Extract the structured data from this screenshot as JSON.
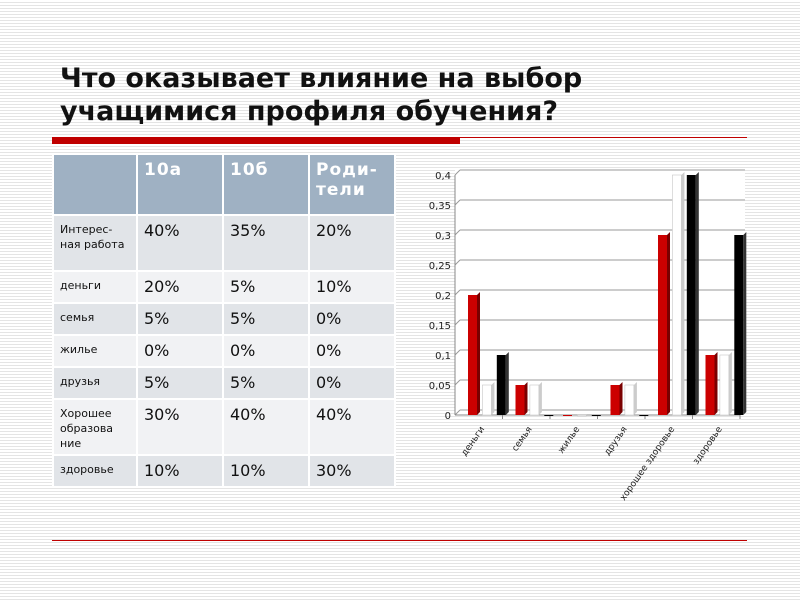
{
  "title_lines": [
    "Что оказывает влияние на выбор",
    "учащимися профиля обучения?"
  ],
  "table": {
    "headers": [
      "",
      "10а",
      "10б",
      "Роди-\nтели"
    ],
    "header_lines": {
      "c1": "10а",
      "c2": "10б",
      "c3a": "Роди-",
      "c3b": "тели"
    },
    "rows": [
      {
        "label": "Интерес-ная работа",
        "v": [
          "40%",
          "35%",
          "20%"
        ]
      },
      {
        "label": "деньги",
        "v": [
          "20%",
          "5%",
          "10%"
        ]
      },
      {
        "label": "семья",
        "v": [
          "5%",
          "5%",
          "0%"
        ]
      },
      {
        "label": "жилье",
        "v": [
          "0%",
          "0%",
          "0%"
        ]
      },
      {
        "label": "друзья",
        "v": [
          "5%",
          "5%",
          "0%"
        ]
      },
      {
        "label": "Хорошее образова ние",
        "v": [
          "30%",
          "40%",
          "40%"
        ]
      },
      {
        "label": "здоровье",
        "v": [
          "10%",
          "10%",
          "30%"
        ]
      }
    ]
  },
  "chart_data": {
    "type": "bar",
    "categories": [
      "деньги",
      "семья",
      "жилье",
      "друзья",
      "хорошее здоровье",
      "здоровье"
    ],
    "series": [
      {
        "name": "10а",
        "color": "#cc0000",
        "values": [
          0.2,
          0.05,
          0,
          0.05,
          0.3,
          0.1
        ]
      },
      {
        "name": "10б",
        "color": "#ffffff",
        "values": [
          0.05,
          0.05,
          0,
          0.05,
          0.4,
          0.1
        ]
      },
      {
        "name": "Родители",
        "color": "#000000",
        "values": [
          0.1,
          0,
          0,
          0,
          0.4,
          0.3
        ]
      }
    ],
    "ylim": [
      0,
      0.4
    ],
    "yticks": [
      "0",
      "0,05",
      "0,1",
      "0,15",
      "0,2",
      "0,25",
      "0,3",
      "0,35",
      "0,4"
    ],
    "grid": true,
    "legend": "none",
    "title": "",
    "xlabel": "",
    "ylabel": ""
  }
}
